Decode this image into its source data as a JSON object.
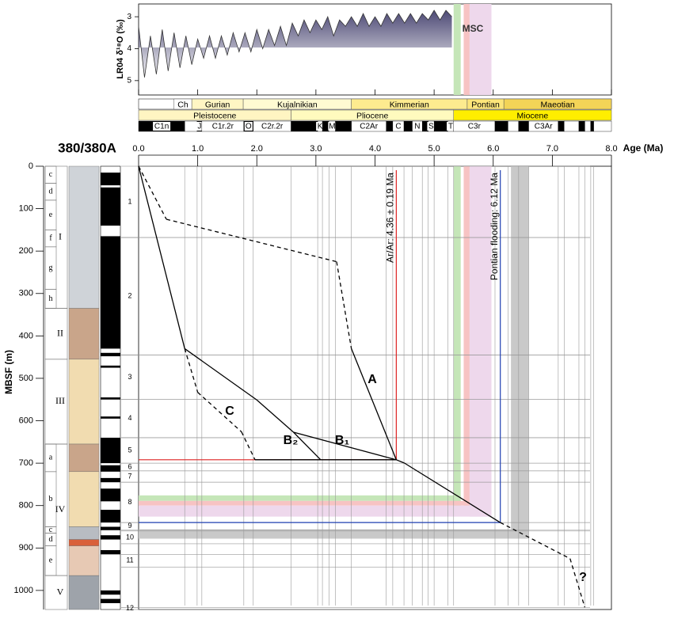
{
  "chart_data": {
    "type": "line",
    "title": "380/380A",
    "xlabel": "Age (Ma)",
    "ylabel": "MBSF (m)",
    "xlim": [
      0,
      8
    ],
    "xticks": [
      {
        "value": 0,
        "label": "0.0"
      },
      {
        "value": 1,
        "label": "1.0"
      },
      {
        "value": 2,
        "label": "2.0"
      },
      {
        "value": 3,
        "label": "3.0"
      },
      {
        "value": 4,
        "label": "4.0"
      },
      {
        "value": 5,
        "label": "5.0"
      },
      {
        "value": 6,
        "label": "6.0"
      },
      {
        "value": 7,
        "label": "7.0"
      },
      {
        "value": 8,
        "label": "8.0"
      }
    ],
    "ylim": [
      0,
      1045
    ],
    "yticks": [
      0,
      100,
      200,
      300,
      400,
      500,
      600,
      700,
      800,
      900,
      1000
    ],
    "series": [
      {
        "x": [
          0,
          0.78
        ],
        "values": [
          0,
          430
        ],
        "dash": [
          false
        ]
      },
      {
        "name": "A",
        "x": [
          0,
          0.47,
          3.35,
          3.6,
          4.36
        ],
        "values": [
          0,
          125,
          225,
          430,
          692
        ],
        "dash": [
          true,
          true,
          true,
          false
        ]
      },
      {
        "name": "B₁",
        "x": [
          0.78,
          2.0,
          2.62,
          4.36
        ],
        "values": [
          430,
          551,
          627,
          692
        ],
        "dash": [
          false,
          false,
          false
        ]
      },
      {
        "name": "B₂",
        "x": [
          2.62,
          3.08,
          4.36
        ],
        "values": [
          627,
          692,
          692
        ],
        "dash": [
          false,
          false
        ]
      },
      {
        "name": "C",
        "x": [
          0.78,
          1.0,
          1.74,
          1.97,
          3.08
        ],
        "values": [
          430,
          533,
          626,
          692,
          692
        ],
        "dash": [
          true,
          true,
          true,
          false
        ]
      },
      {
        "x": [
          4.36,
          4.5,
          6.12,
          7.3,
          7.55
        ],
        "values": [
          692,
          700,
          840,
          925,
          1040
        ],
        "dash": [
          false,
          false,
          true,
          true
        ]
      }
    ],
    "annotations": {
      "arar": "Ar/Ar: 4.36 ± 0.19 Ma",
      "pontian": "Pontian flooding: 6.12 Ma",
      "msc": "MSC",
      "question": "?"
    },
    "arar_age": 4.36,
    "arar_depth": 692,
    "pontian_age": 6.12,
    "pontian_depth": 840,
    "bands": [
      {
        "from": 5.33,
        "to": 5.45,
        "color": "#c5e6b8",
        "depth_from": 776,
        "depth_to": 789,
        "bottom": 822
      },
      {
        "from": 5.5,
        "to": 5.6,
        "color": "#f7c3c3",
        "depth_from": 789,
        "depth_to": 800,
        "bottom": 822
      },
      {
        "from": 5.6,
        "to": 5.97,
        "color": "#eed8ec",
        "depth_from": 800,
        "depth_to": 826,
        "bottom": 826
      },
      {
        "from": 6.3,
        "to": 6.6,
        "color": "#c9c9c9",
        "depth_from": 856,
        "depth_to": 878,
        "bottom": 878
      }
    ],
    "o18": {
      "ylabel": "LR04 δ¹⁸O (‰)",
      "ylim": [
        2.6,
        5.45
      ],
      "yticks": [
        3,
        4,
        5
      ],
      "x": [
        0,
        0.1,
        0.2,
        0.3,
        0.4,
        0.5,
        0.6,
        0.7,
        0.8,
        0.9,
        1.0,
        1.1,
        1.2,
        1.3,
        1.4,
        1.5,
        1.6,
        1.7,
        1.8,
        1.9,
        2.0,
        2.1,
        2.2,
        2.3,
        2.4,
        2.5,
        2.6,
        2.7,
        2.8,
        2.9,
        3.0,
        3.1,
        3.2,
        3.3,
        3.4,
        3.5,
        3.6,
        3.7,
        3.8,
        3.9,
        4.0,
        4.1,
        4.2,
        4.3,
        4.4,
        4.5,
        4.6,
        4.7,
        4.8,
        4.9,
        5.0,
        5.1,
        5.2,
        5.3
      ],
      "values": [
        3.3,
        4.9,
        3.6,
        4.8,
        3.4,
        4.7,
        3.5,
        4.6,
        3.6,
        4.5,
        3.7,
        4.3,
        3.6,
        4.3,
        3.6,
        4.2,
        3.5,
        4.1,
        3.5,
        4.1,
        3.4,
        4.0,
        3.4,
        3.9,
        3.3,
        3.9,
        3.2,
        3.6,
        3.1,
        3.5,
        3.1,
        3.4,
        3.0,
        3.6,
        3.1,
        3.3,
        3.0,
        3.3,
        2.9,
        3.3,
        3.0,
        3.3,
        2.9,
        3.2,
        2.9,
        3.2,
        2.9,
        3.2,
        2.9,
        3.1,
        2.8,
        3.1,
        2.8,
        3.0
      ],
      "color": "#333333"
    },
    "stages": [
      {
        "label": "Ch",
        "from": 0.6,
        "to": 0.9,
        "color": "#ffffff"
      },
      {
        "label": "Gurian",
        "from": 0.9,
        "to": 1.77,
        "color": "#fff6c4"
      },
      {
        "label": "Kujalnikian",
        "from": 1.77,
        "to": 3.6,
        "color": "#fffad2"
      },
      {
        "label": "Kimmerian",
        "from": 3.6,
        "to": 5.56,
        "color": "#fdeb8f"
      },
      {
        "label": "Pontian",
        "from": 5.56,
        "to": 6.18,
        "color": "#fde67a"
      },
      {
        "label": "Maeotian",
        "from": 6.18,
        "to": 8,
        "color": "#f3d457"
      }
    ],
    "epochs": [
      {
        "label": "Pleistocene",
        "from": 0,
        "to": 2.58,
        "color": "#fff5c2"
      },
      {
        "label": "Pliocene",
        "from": 2.58,
        "to": 5.33,
        "color": "#fffabe"
      },
      {
        "label": "Miocene",
        "from": 5.33,
        "to": 8,
        "color": "#ffee00"
      }
    ],
    "chrons": [
      {
        "from": 0,
        "to": 0.78,
        "normal": true,
        "label": "C1n"
      },
      {
        "from": 0.78,
        "to": 0.99,
        "normal": false
      },
      {
        "from": 0.99,
        "to": 1.07,
        "normal": true,
        "label": "J"
      },
      {
        "from": 1.07,
        "to": 1.78,
        "normal": false,
        "label": "C1r.2r"
      },
      {
        "from": 1.78,
        "to": 1.94,
        "normal": true,
        "label": "O"
      },
      {
        "from": 1.94,
        "to": 2.58,
        "normal": false,
        "label": "C2r.2r"
      },
      {
        "from": 2.58,
        "to": 3.03,
        "normal": true
      },
      {
        "from": 3.03,
        "to": 3.11,
        "normal": false,
        "label": "K"
      },
      {
        "from": 3.11,
        "to": 3.22,
        "normal": true
      },
      {
        "from": 3.22,
        "to": 3.33,
        "normal": false,
        "label": "M"
      },
      {
        "from": 3.33,
        "to": 3.6,
        "normal": true
      },
      {
        "from": 3.6,
        "to": 4.19,
        "normal": false,
        "label": "C2Ar"
      },
      {
        "from": 4.19,
        "to": 4.3,
        "normal": true
      },
      {
        "from": 4.3,
        "to": 4.49,
        "normal": false,
        "label": "C"
      },
      {
        "from": 4.49,
        "to": 4.63,
        "normal": true
      },
      {
        "from": 4.63,
        "to": 4.8,
        "normal": false,
        "label": "N"
      },
      {
        "from": 4.8,
        "to": 4.9,
        "normal": true
      },
      {
        "from": 4.9,
        "to": 5.0,
        "normal": false,
        "label": "S"
      },
      {
        "from": 5.0,
        "to": 5.23,
        "normal": true
      },
      {
        "from": 5.23,
        "to": 5.33,
        "normal": false,
        "label": "T"
      },
      {
        "from": 5.33,
        "to": 6.03,
        "normal": false,
        "label": "C3r"
      },
      {
        "from": 6.03,
        "to": 6.25,
        "normal": true
      },
      {
        "from": 6.25,
        "to": 6.43,
        "normal": false
      },
      {
        "from": 6.43,
        "to": 6.6,
        "normal": true
      },
      {
        "from": 6.6,
        "to": 7.1,
        "normal": false,
        "label": "C3Ar"
      },
      {
        "from": 7.1,
        "to": 7.2,
        "normal": true
      },
      {
        "from": 7.2,
        "to": 7.45,
        "normal": false
      },
      {
        "from": 7.45,
        "to": 7.55,
        "normal": true
      },
      {
        "from": 7.55,
        "to": 7.65,
        "normal": false
      },
      {
        "from": 7.65,
        "to": 7.7,
        "normal": true
      },
      {
        "from": 7.7,
        "to": 8,
        "normal": false
      }
    ],
    "units": [
      {
        "label": "I",
        "top": 0,
        "bottom": 335
      },
      {
        "label": "II",
        "top": 335,
        "bottom": 455
      },
      {
        "label": "III",
        "top": 455,
        "bottom": 655
      },
      {
        "label": "IV",
        "top": 655,
        "bottom": 965
      },
      {
        "label": "V",
        "top": 965,
        "bottom": 1045
      }
    ],
    "subunits": [
      {
        "label": "c",
        "top": 0,
        "bottom": 40
      },
      {
        "label": "d",
        "top": 40,
        "bottom": 80
      },
      {
        "label": "e",
        "top": 80,
        "bottom": 150
      },
      {
        "label": "f",
        "top": 150,
        "bottom": 190
      },
      {
        "label": "g",
        "top": 190,
        "bottom": 290
      },
      {
        "label": "h",
        "top": 290,
        "bottom": 335
      },
      {
        "label": "a",
        "top": 655,
        "bottom": 720
      },
      {
        "label": "b",
        "top": 720,
        "bottom": 850
      },
      {
        "label": "c",
        "top": 850,
        "bottom": 865
      },
      {
        "label": "d",
        "top": 865,
        "bottom": 895
      },
      {
        "label": "e",
        "top": 895,
        "bottom": 965
      }
    ],
    "lithology": [
      {
        "top": 0,
        "bottom": 335,
        "color": "#cfd3d8"
      },
      {
        "top": 335,
        "bottom": 455,
        "color": "#c9a58a"
      },
      {
        "top": 455,
        "bottom": 655,
        "color": "#f1dcb0"
      },
      {
        "top": 655,
        "bottom": 720,
        "color": "#c9a58a"
      },
      {
        "top": 720,
        "bottom": 850,
        "color": "#f1dcb0"
      },
      {
        "top": 850,
        "bottom": 880,
        "color": "#b8bcc2"
      },
      {
        "top": 880,
        "bottom": 895,
        "color": "#d9603a"
      },
      {
        "top": 895,
        "bottom": 965,
        "color": "#e7c9b4"
      },
      {
        "top": 965,
        "bottom": 1045,
        "color": "#9ea3aa"
      }
    ],
    "polarity": [
      [
        15,
        45
      ],
      [
        50,
        140
      ],
      [
        165,
        430
      ],
      [
        440,
        448
      ],
      [
        470,
        475
      ],
      [
        545,
        550
      ],
      [
        590,
        595
      ],
      [
        640,
        700
      ],
      [
        705,
        720
      ],
      [
        735,
        745
      ],
      [
        760,
        790
      ],
      [
        810,
        840
      ],
      [
        850,
        858
      ],
      [
        870,
        880
      ],
      [
        905,
        915
      ],
      [
        1000,
        1010
      ],
      [
        1020,
        1030
      ]
    ],
    "cores": [
      {
        "label": "1",
        "top": 0,
        "bottom": 168
      },
      {
        "label": "2",
        "top": 168,
        "bottom": 445
      },
      {
        "label": "3",
        "top": 445,
        "bottom": 550
      },
      {
        "label": "4",
        "top": 550,
        "bottom": 640
      },
      {
        "label": "5",
        "top": 640,
        "bottom": 700
      },
      {
        "label": "6",
        "top": 700,
        "bottom": 718
      },
      {
        "label": "7",
        "top": 718,
        "bottom": 745
      },
      {
        "label": "8",
        "top": 745,
        "bottom": 840
      },
      {
        "label": "9",
        "top": 840,
        "bottom": 857
      },
      {
        "label": "10",
        "top": 860,
        "bottom": 890
      },
      {
        "label": "11",
        "top": 915,
        "bottom": 945
      },
      {
        "label": "12",
        "top": 1040,
        "bottom": 1045
      }
    ]
  }
}
